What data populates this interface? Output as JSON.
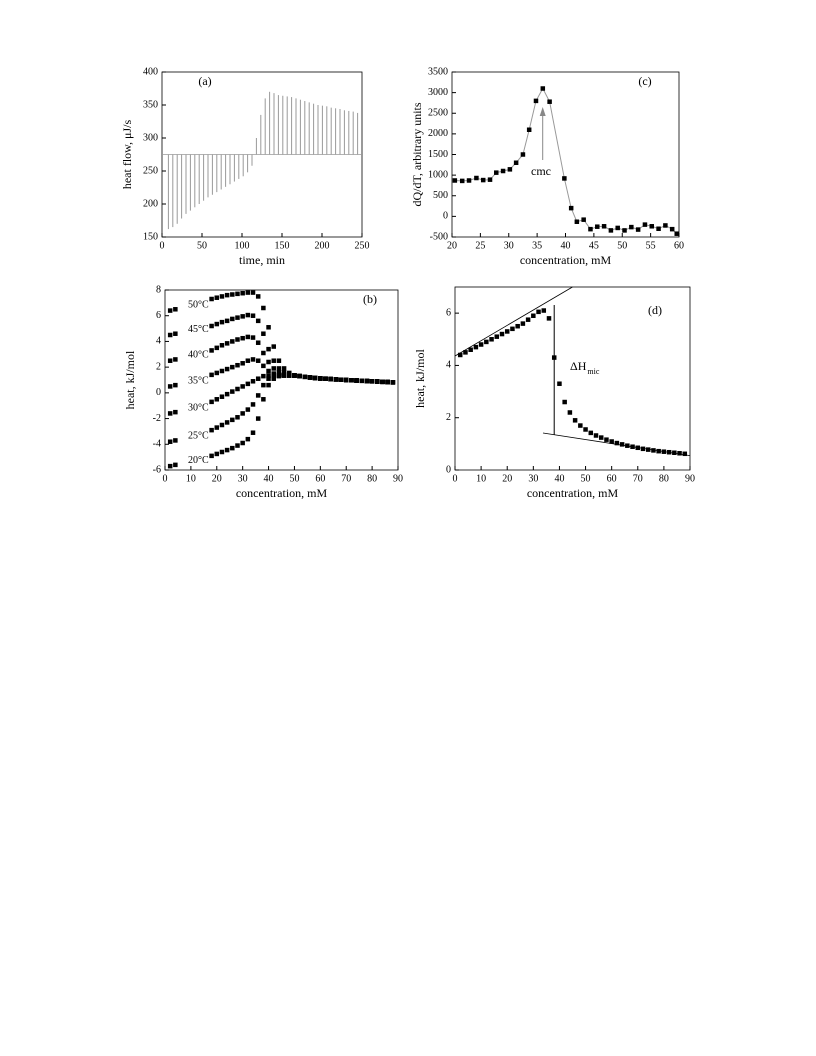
{
  "chart_data": [
    {
      "type": "spike",
      "annotation": "(a)",
      "xlabel": "time, min",
      "ylabel": "heat flow, μJ/s",
      "xlim": [
        0,
        250
      ],
      "ylim": [
        150,
        400
      ],
      "xticks": [
        0,
        50,
        100,
        150,
        200,
        250
      ],
      "yticks": [
        150,
        200,
        250,
        300,
        350,
        400
      ],
      "baseline": 275,
      "color": "#999999",
      "x": [
        8,
        13.5,
        19,
        24.5,
        30,
        35.5,
        41,
        46.5,
        52,
        57.5,
        63,
        68.5,
        74,
        79.5,
        85,
        90.5,
        96,
        101.5,
        107,
        112.5,
        118,
        123.5,
        129,
        134.5,
        140,
        145.5,
        151,
        156.5,
        162,
        167.5,
        173,
        178.5,
        184,
        189.5,
        195,
        200.5,
        206,
        211.5,
        217,
        222.5,
        228,
        233.5,
        239,
        244.5
      ],
      "values": [
        162,
        165,
        170,
        178,
        185,
        190,
        195,
        200,
        205,
        210,
        214,
        218,
        222,
        226,
        230,
        234,
        238,
        242,
        248,
        258,
        300,
        335,
        360,
        370,
        368,
        365,
        364,
        363,
        362,
        360,
        358,
        356,
        354,
        352,
        350,
        349,
        348,
        346,
        345,
        344,
        342,
        341,
        340,
        338
      ]
    },
    {
      "type": "scatter",
      "annotation": "(c)",
      "note": "cmc",
      "xlabel": "concentration, mM",
      "ylabel": "dQ/dT, arbitrary units",
      "xlim": [
        20,
        60
      ],
      "ylim": [
        -500,
        3500
      ],
      "xticks": [
        20,
        25,
        30,
        35,
        40,
        45,
        50,
        55,
        60
      ],
      "yticks": [
        -500,
        0,
        500,
        1000,
        1500,
        2000,
        2500,
        3000,
        3500
      ],
      "color": "#000000",
      "line_color": "#999999",
      "x": [
        20.5,
        21.8,
        23.0,
        24.3,
        25.5,
        26.7,
        27.8,
        29.0,
        30.2,
        31.3,
        32.5,
        33.6,
        34.8,
        36.0,
        37.2,
        39.8,
        41.0,
        42.0,
        43.2,
        44.4,
        45.6,
        46.8,
        48.0,
        49.2,
        50.4,
        51.6,
        52.8,
        54.0,
        55.2,
        56.4,
        57.6,
        58.8,
        59.6
      ],
      "values": [
        870,
        860,
        870,
        930,
        880,
        890,
        1060,
        1100,
        1140,
        1300,
        1500,
        2100,
        2800,
        3100,
        2780,
        920,
        200,
        -130,
        -80,
        -310,
        -250,
        -240,
        -340,
        -280,
        -340,
        -260,
        -320,
        -200,
        -240,
        -300,
        -220,
        -310,
        -420
      ]
    },
    {
      "type": "multiscatter",
      "annotation": "(b)",
      "xlabel": "concentration, mM",
      "ylabel": "heat, kJ/mol",
      "xlim": [
        0,
        90
      ],
      "ylim": [
        -6,
        8
      ],
      "xticks": [
        0,
        10,
        20,
        30,
        40,
        50,
        60,
        70,
        80,
        90
      ],
      "yticks": [
        -6,
        -4,
        -2,
        0,
        2,
        4,
        6,
        8
      ],
      "x": [
        2,
        4,
        18,
        20,
        22,
        24,
        26,
        28,
        30,
        32,
        34,
        36,
        38,
        40,
        42,
        44,
        46,
        48,
        50,
        52,
        54,
        56,
        58,
        60,
        62,
        64,
        66,
        68,
        70,
        72,
        74,
        76,
        78,
        80,
        82,
        84,
        86,
        88
      ],
      "series": [
        {
          "name": "50°C",
          "color": "#000000",
          "values": [
            6.4,
            6.5,
            7.3,
            7.4,
            7.5,
            7.6,
            7.65,
            7.7,
            7.75,
            7.8,
            7.8,
            7.5,
            6.6,
            5.1,
            3.6,
            2.5,
            1.9,
            1.55,
            1.35,
            1.3,
            1.25,
            1.2,
            1.15,
            1.12,
            1.1,
            1.07,
            1.05,
            1.02,
            1.0,
            0.98,
            0.96,
            0.94,
            0.92,
            0.9,
            0.88,
            0.86,
            0.84,
            0.82
          ]
        },
        {
          "name": "45°C",
          "color": "#000000",
          "values": [
            4.5,
            4.6,
            5.2,
            5.35,
            5.5,
            5.6,
            5.75,
            5.85,
            5.95,
            6.05,
            6.0,
            5.6,
            4.6,
            3.4,
            2.5,
            1.9,
            1.6,
            1.45,
            1.35,
            1.3,
            1.25,
            1.2,
            1.15,
            1.12,
            1.1,
            1.07,
            1.05,
            1.02,
            1.0,
            0.98,
            0.96,
            0.94,
            0.92,
            0.9,
            0.88,
            0.86,
            0.84,
            0.82
          ]
        },
        {
          "name": "40°C",
          "color": "#000000",
          "values": [
            2.5,
            2.6,
            3.3,
            3.5,
            3.7,
            3.85,
            4.0,
            4.15,
            4.25,
            4.35,
            4.3,
            3.9,
            3.1,
            2.4,
            1.9,
            1.6,
            1.45,
            1.4,
            1.35,
            1.3,
            1.25,
            1.2,
            1.15,
            1.12,
            1.1,
            1.07,
            1.05,
            1.02,
            1.0,
            0.98,
            0.96,
            0.94,
            0.92,
            0.9,
            0.88,
            0.86,
            0.84,
            0.82
          ]
        },
        {
          "name": "35°C",
          "color": "#000000",
          "values": [
            0.5,
            0.6,
            1.4,
            1.55,
            1.7,
            1.85,
            2.0,
            2.15,
            2.3,
            2.5,
            2.6,
            2.5,
            2.1,
            1.7,
            1.5,
            1.4,
            1.35,
            1.35,
            1.35,
            1.3,
            1.25,
            1.2,
            1.15,
            1.12,
            1.1,
            1.07,
            1.05,
            1.02,
            1.0,
            0.98,
            0.96,
            0.94,
            0.92,
            0.9,
            0.88,
            0.86,
            0.84,
            0.82
          ]
        },
        {
          "name": "30°C",
          "color": "#000000",
          "values": [
            -1.6,
            -1.5,
            -0.7,
            -0.5,
            -0.3,
            -0.1,
            0.1,
            0.3,
            0.5,
            0.7,
            0.9,
            1.1,
            1.3,
            1.35,
            1.35,
            1.35,
            1.35,
            1.35,
            1.35,
            1.3,
            1.25,
            1.2,
            1.15,
            1.12,
            1.1,
            1.07,
            1.05,
            1.02,
            1.0,
            0.98,
            0.96,
            0.94,
            0.92,
            0.9,
            0.88,
            0.86,
            0.84,
            0.82
          ]
        },
        {
          "name": "25°C",
          "color": "#000000",
          "values": [
            -3.8,
            -3.7,
            -2.9,
            -2.7,
            -2.5,
            -2.3,
            -2.1,
            -1.9,
            -1.6,
            -1.3,
            -0.9,
            -0.2,
            0.6,
            1.1,
            1.3,
            1.35,
            1.35,
            1.35,
            1.35,
            1.3,
            1.25,
            1.2,
            1.15,
            1.12,
            1.1,
            1.07,
            1.05,
            1.02,
            1.0,
            0.98,
            0.96,
            0.94,
            0.92,
            0.9,
            0.88,
            0.86,
            0.84,
            0.82
          ]
        },
        {
          "name": "20°C",
          "color": "#000000",
          "values": [
            -5.7,
            -5.6,
            -4.9,
            -4.75,
            -4.6,
            -4.45,
            -4.3,
            -4.1,
            -3.9,
            -3.6,
            -3.1,
            -2.0,
            -0.5,
            0.6,
            1.1,
            1.3,
            1.35,
            1.35,
            1.35,
            1.3,
            1.25,
            1.2,
            1.15,
            1.12,
            1.1,
            1.07,
            1.05,
            1.02,
            1.0,
            0.98,
            0.96,
            0.94,
            0.92,
            0.9,
            0.88,
            0.86,
            0.84,
            0.82
          ]
        }
      ]
    },
    {
      "type": "scatter",
      "annotation": "(d)",
      "note": "ΔH",
      "note_sub": "mic",
      "xlabel": "concentration, mM",
      "ylabel": "heat, kJ/mol",
      "xlim": [
        0,
        90
      ],
      "ylim": [
        0,
        7
      ],
      "xticks": [
        0,
        10,
        20,
        30,
        40,
        50,
        60,
        70,
        80,
        90
      ],
      "yticks": [
        0,
        2,
        4,
        6
      ],
      "color": "#000000",
      "x": [
        2,
        4,
        6,
        8,
        10,
        12,
        14,
        16,
        18,
        20,
        22,
        24,
        26,
        28,
        30,
        32,
        34,
        36,
        38,
        40,
        42,
        44,
        46,
        48,
        50,
        52,
        54,
        56,
        58,
        60,
        62,
        64,
        66,
        68,
        70,
        72,
        74,
        76,
        78,
        80,
        82,
        84,
        86,
        88
      ],
      "values": [
        4.4,
        4.5,
        4.6,
        4.7,
        4.8,
        4.9,
        5.0,
        5.1,
        5.2,
        5.3,
        5.4,
        5.5,
        5.6,
        5.75,
        5.9,
        6.05,
        6.1,
        5.8,
        4.3,
        3.3,
        2.6,
        2.2,
        1.9,
        1.7,
        1.55,
        1.42,
        1.32,
        1.24,
        1.16,
        1.09,
        1.03,
        0.98,
        0.93,
        0.89,
        0.85,
        0.81,
        0.78,
        0.75,
        0.72,
        0.7,
        0.68,
        0.66,
        0.64,
        0.62
      ]
    }
  ]
}
